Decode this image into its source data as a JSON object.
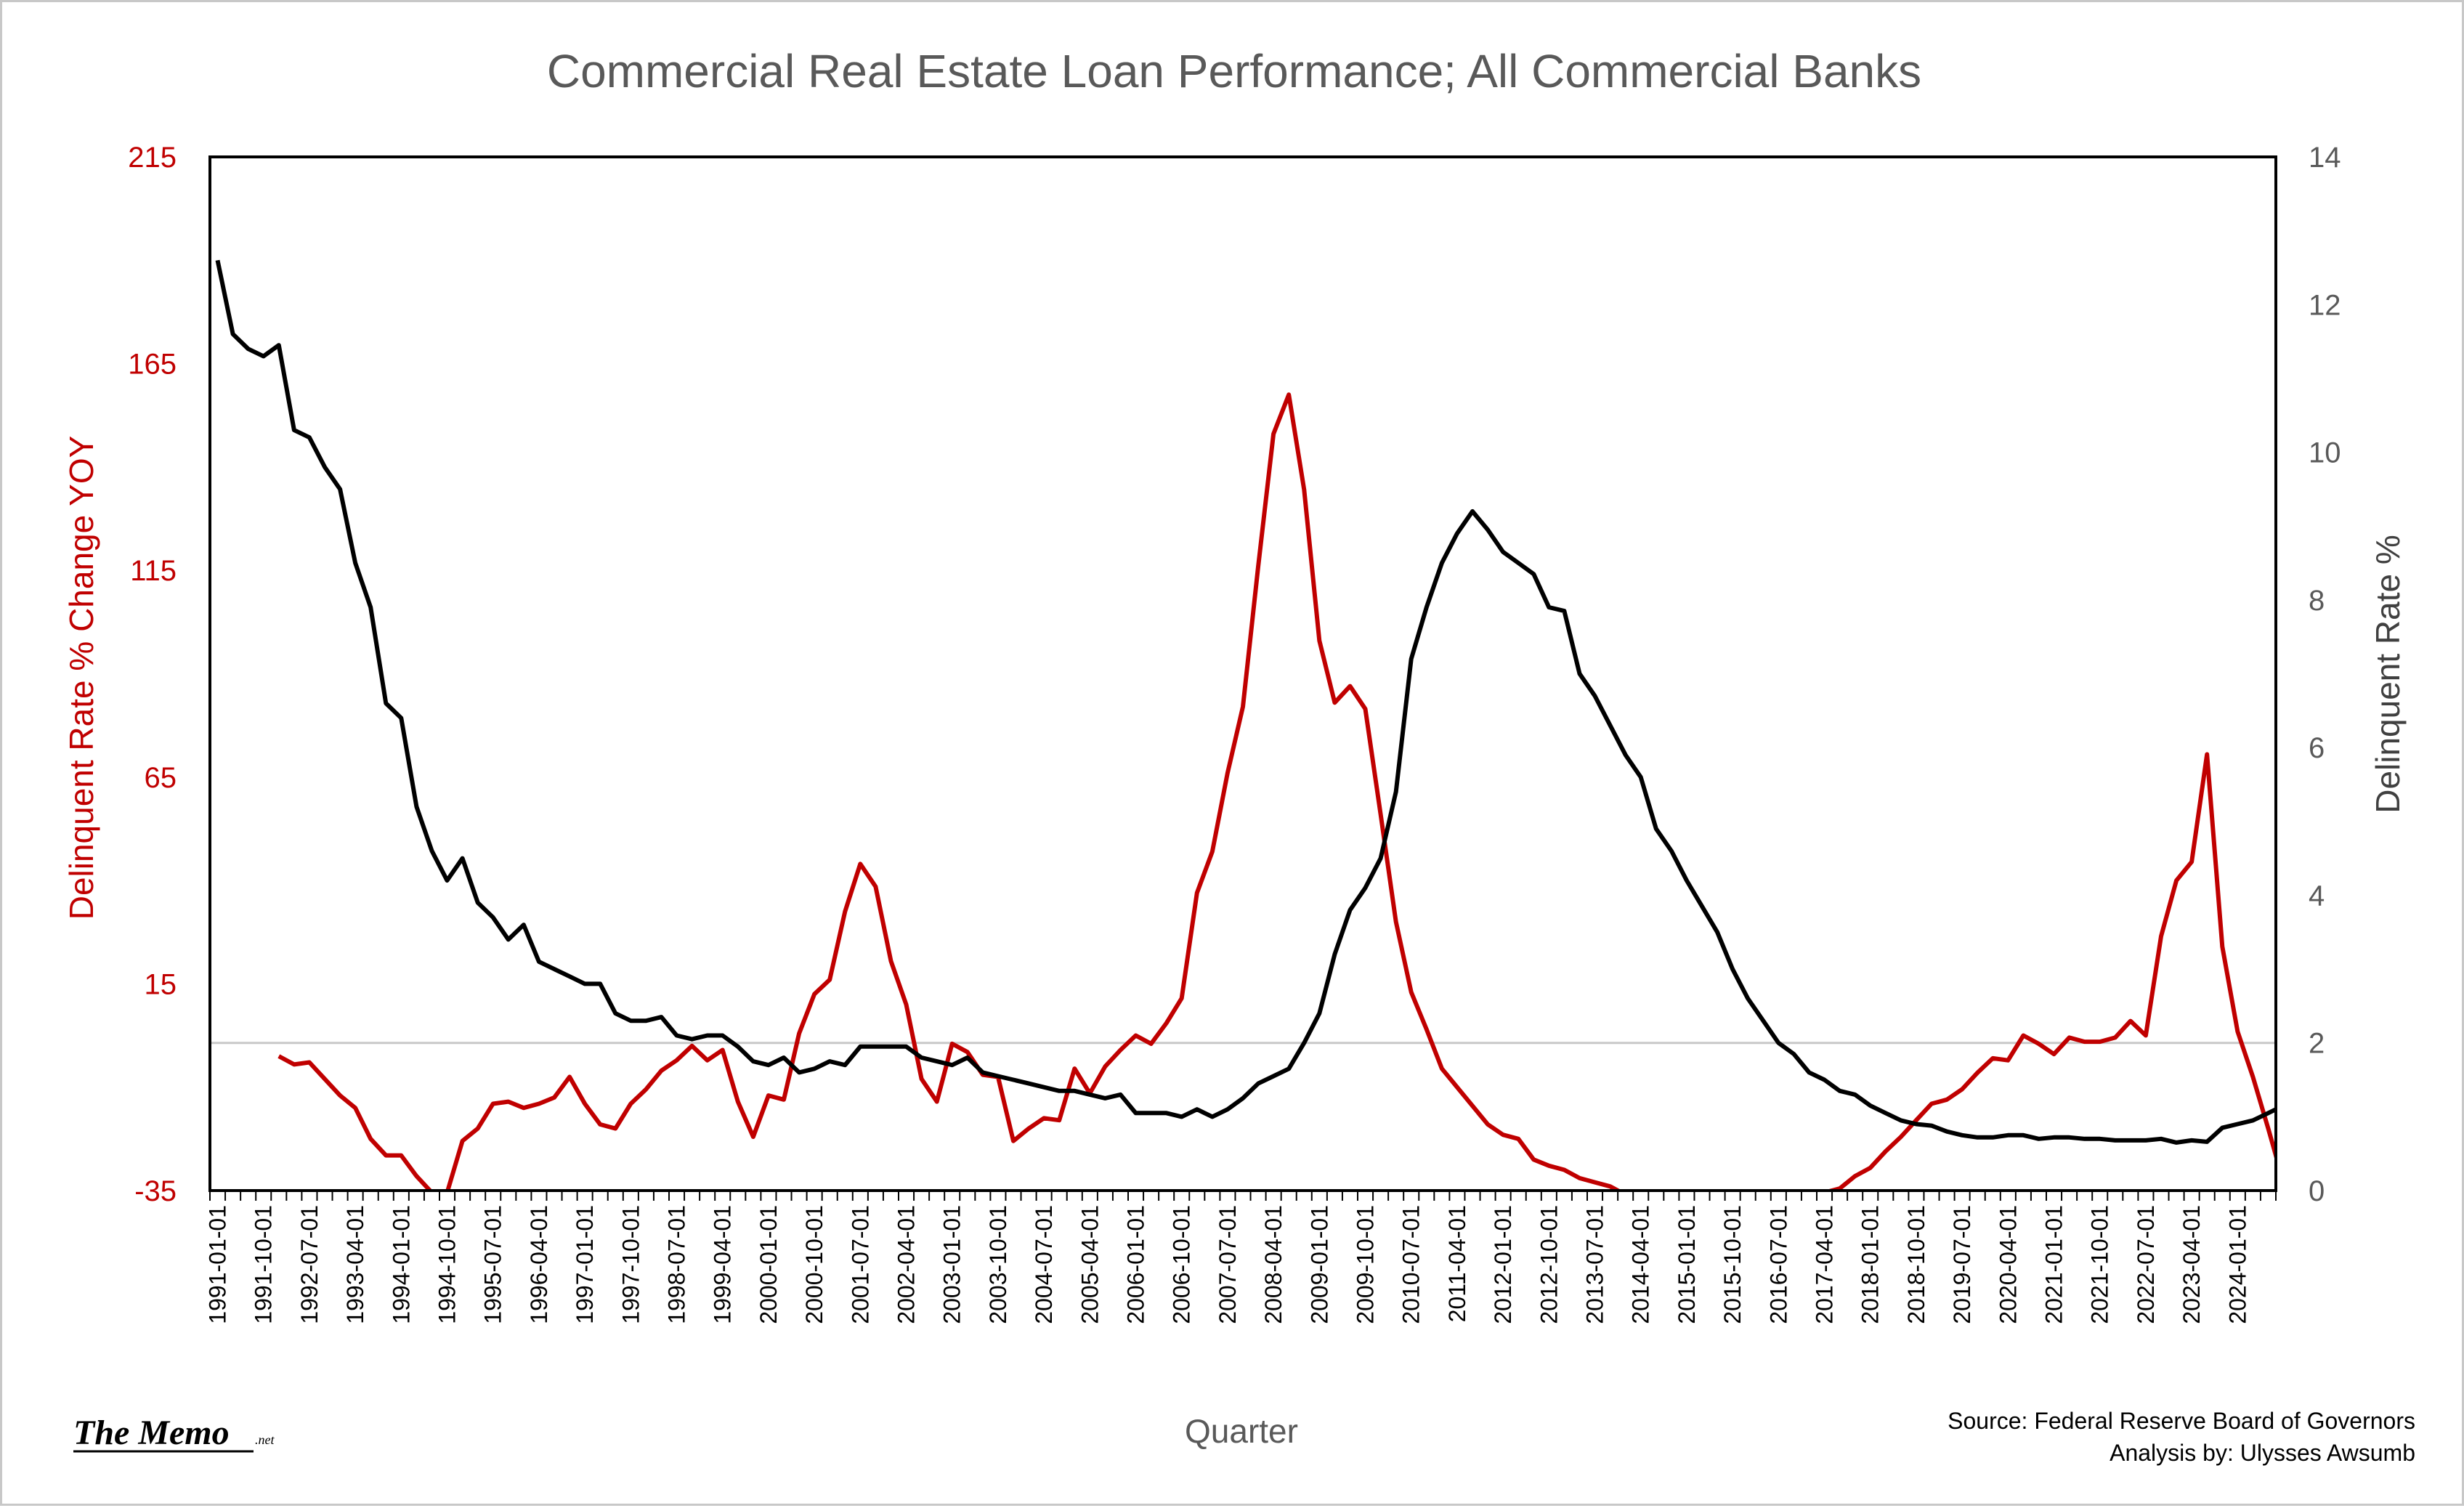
{
  "chart_data": {
    "type": "line",
    "title": "Commercial Real Estate Loan Performance;  All Commercial Banks",
    "xlabel": "Quarter",
    "ylabel_left": "Delinquent Rate % Change YOY",
    "ylabel_right": "Delinquent Rate %",
    "y_left": {
      "min": -35,
      "max": 215,
      "ticks": [
        -35,
        15,
        65,
        115,
        165,
        215
      ]
    },
    "y_right": {
      "min": 0,
      "max": 14,
      "ticks": [
        0,
        2,
        4,
        6,
        8,
        10,
        12,
        14
      ]
    },
    "reference_line_right": 2,
    "x_start": "1991-01-01",
    "x_end": "2024-07-01",
    "x_tick_labels": [
      "1991-01-01",
      "1991-10-01",
      "1992-07-01",
      "1993-04-01",
      "1994-01-01",
      "1994-10-01",
      "1995-07-01",
      "1996-04-01",
      "1997-01-01",
      "1997-10-01",
      "1998-07-01",
      "1999-04-01",
      "2000-01-01",
      "2000-10-01",
      "2001-07-01",
      "2002-04-01",
      "2003-01-01",
      "2003-10-01",
      "2004-07-01",
      "2005-04-01",
      "2006-01-01",
      "2006-10-01",
      "2007-07-01",
      "2008-04-01",
      "2009-01-01",
      "2009-10-01",
      "2010-07-01",
      "2011-04-01",
      "2012-01-01",
      "2012-10-01",
      "2013-07-01",
      "2014-04-01",
      "2015-01-01",
      "2015-10-01",
      "2016-07-01",
      "2017-04-01",
      "2018-01-01",
      "2018-10-01",
      "2019-07-01",
      "2020-04-01",
      "2021-01-01",
      "2021-10-01",
      "2022-07-01",
      "2023-04-01",
      "2024-01-01"
    ],
    "series": [
      {
        "name": "Delinquent Rate %",
        "axis": "right",
        "color": "#000000",
        "values": [
          12.6,
          11.6,
          11.4,
          11.3,
          11.45,
          10.3,
          10.2,
          9.8,
          9.5,
          8.5,
          7.9,
          6.6,
          6.4,
          5.2,
          4.6,
          4.2,
          4.5,
          3.9,
          3.7,
          3.4,
          3.6,
          3.1,
          3.0,
          2.9,
          2.8,
          2.8,
          2.4,
          2.3,
          2.3,
          2.35,
          2.1,
          2.05,
          2.1,
          2.1,
          1.95,
          1.75,
          1.7,
          1.8,
          1.6,
          1.65,
          1.75,
          1.7,
          1.95,
          1.95,
          1.95,
          1.95,
          1.8,
          1.75,
          1.7,
          1.8,
          1.6,
          1.55,
          1.5,
          1.45,
          1.4,
          1.35,
          1.35,
          1.3,
          1.25,
          1.3,
          1.05,
          1.05,
          1.05,
          1.0,
          1.1,
          1.0,
          1.1,
          1.25,
          1.45,
          1.55,
          1.65,
          2.0,
          2.4,
          3.2,
          3.8,
          4.1,
          4.5,
          5.4,
          7.2,
          7.9,
          8.5,
          8.9,
          9.2,
          8.95,
          8.65,
          8.5,
          8.35,
          7.9,
          7.85,
          7.0,
          6.7,
          6.3,
          5.9,
          5.6,
          4.9,
          4.6,
          4.2,
          3.85,
          3.5,
          3.0,
          2.6,
          2.3,
          2.0,
          1.85,
          1.6,
          1.5,
          1.35,
          1.3,
          1.15,
          1.05,
          0.95,
          0.9,
          0.88,
          0.8,
          0.75,
          0.72,
          0.72,
          0.75,
          0.75,
          0.7,
          0.72,
          0.72,
          0.7,
          0.7,
          0.68,
          0.68,
          0.68,
          0.7,
          0.65,
          0.68,
          0.66,
          0.85,
          0.9,
          0.95,
          1.05,
          1.15,
          1.05,
          0.95,
          0.85,
          0.8,
          0.75,
          0.75,
          0.74,
          0.7,
          0.65,
          0.72,
          0.85,
          0.86,
          1.05,
          1.15,
          1.25,
          1.35,
          1.48
        ]
      },
      {
        "name": "Delinquent Rate % Change YOY",
        "axis": "left",
        "color": "#c00000",
        "start_index": 4,
        "values": [
          -2.5,
          -4.5,
          -4.0,
          -8.0,
          -12.0,
          -15.0,
          -22.5,
          -26.5,
          -26.5,
          -31.5,
          -35.5,
          -35.5,
          -23.0,
          -20.0,
          -14.0,
          -13.5,
          -15.0,
          -14.0,
          -12.5,
          -7.5,
          -14.0,
          -19.0,
          -20.0,
          -14.0,
          -10.5,
          -6.0,
          -3.5,
          0.0,
          -3.5,
          -1.0,
          -13.5,
          -22.0,
          -12.0,
          -13.0,
          3.0,
          12.5,
          16.0,
          32.5,
          44.0,
          38.5,
          20.5,
          10.0,
          -8.0,
          -13.5,
          0.5,
          -1.5,
          -7.0,
          -7.5,
          -23.0,
          -20.0,
          -17.5,
          -18.0,
          -5.5,
          -11.5,
          -5.0,
          -1.0,
          2.5,
          0.5,
          5.5,
          11.5,
          37.0,
          47.0,
          66.0,
          82.0,
          116.0,
          148.0,
          157.5,
          134.5,
          98.0,
          83.0,
          87.0,
          81.5,
          56.0,
          30.0,
          13.0,
          4.0,
          -5.5,
          -10.0,
          -14.5,
          -19.0,
          -21.5,
          -22.5,
          -27.5,
          -29.0,
          -30.0,
          -32.0,
          -33.0,
          -34.0,
          -36,
          -38,
          -40,
          -42,
          -44,
          -46,
          -48,
          -48,
          -46,
          -44,
          -42,
          -40,
          -37.0,
          -35.5,
          -34.5,
          -31.5,
          -29.5,
          -25.5,
          -22.0,
          -18.0,
          -14.0,
          -13.0,
          -10.5,
          -6.5,
          -3.0,
          -3.5,
          2.5,
          0.5,
          -2.0,
          2.0,
          1.0,
          1.0,
          2.0,
          6.0,
          2.5,
          26.5,
          40.0,
          44.5,
          70.5,
          24.0,
          3.5,
          -7.5,
          -20.0,
          -33.0,
          -25.0,
          -22.5,
          -27.5,
          -11.5,
          3.5,
          16.5,
          28.5,
          66.0,
          67.0,
          55.5,
          65.5,
          40.5
        ]
      }
    ]
  },
  "source_line1": "Source: Federal Reserve Board of Governors",
  "source_line2": "Analysis by: Ulysses Awsumb",
  "logo_text": "The Memo",
  "logo_suffix": ".net"
}
